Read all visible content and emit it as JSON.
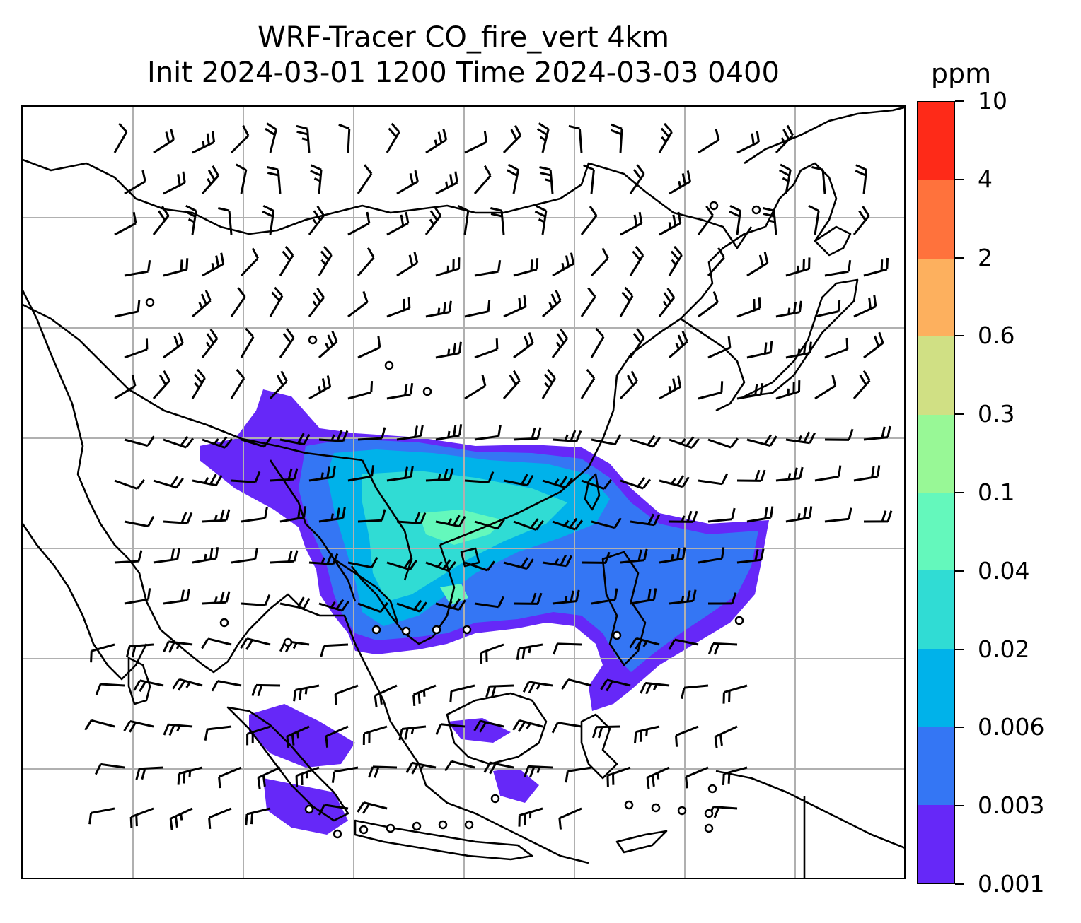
{
  "title": {
    "line1": "WRF-Tracer CO_fire_vert 4km",
    "line2": "Init 2024-03-01 1200 Time 2024-03-03 0400"
  },
  "colorbar": {
    "unit": "ppm",
    "ticks": [
      "0.001",
      "0.003",
      "0.006",
      "0.02",
      "0.04",
      "0.1",
      "0.3",
      "0.6",
      "2",
      "4",
      "10"
    ],
    "colors": [
      "#6628f8",
      "#3476f4",
      "#00b2ea",
      "#30dcd4",
      "#64f8bc",
      "#98f896",
      "#d0e084",
      "#fdb05e",
      "#ff723c",
      "#fe2a18"
    ]
  },
  "map": {
    "gridline_color": "#b0b0b0",
    "coastline_color": "#000000",
    "wind_barbs": "black"
  }
}
